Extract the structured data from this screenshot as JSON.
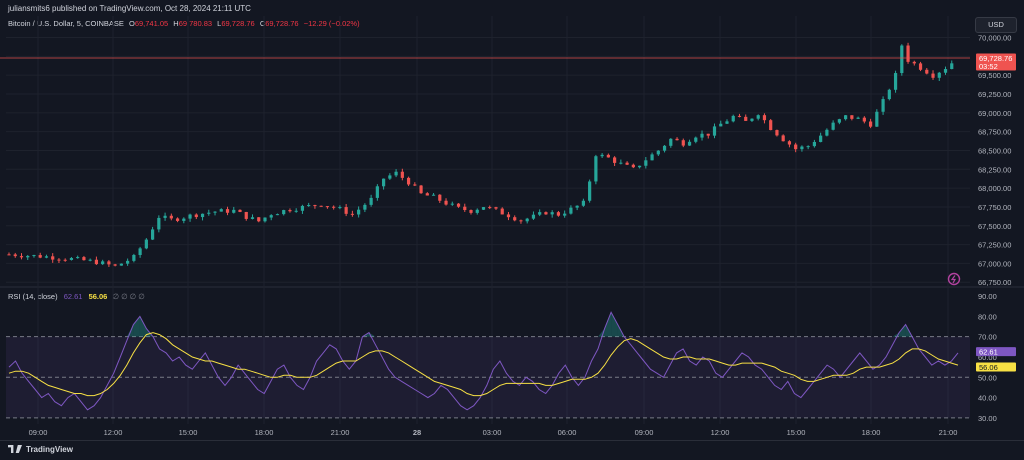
{
  "header": {
    "published": "juliansmits6 published on TradingView.com, Oct 28, 2024 21:11 UTC",
    "symbol": "Bitcoin / U.S. Dollar, 5, COINBASE",
    "o_label": "O",
    "o_value": "69,741.05",
    "h_label": "H",
    "h_value": "69,780.83",
    "l_label": "L",
    "l_value": "69,728.76",
    "c_label": "C",
    "c_value": "69,728.76",
    "change": "−12.29 (−0.02%)",
    "currency": "USD"
  },
  "price_tag": {
    "value": "69,728.76",
    "countdown": "03:52"
  },
  "rsi": {
    "label": "RSI (14, close)",
    "rsi_value": "62.61",
    "ma_value": "56.06",
    "extras": "∅ ∅ ∅ ∅",
    "tag_rsi": "62.61",
    "tag_ma": "56.06"
  },
  "footer": {
    "brand": "TradingView"
  },
  "colors": {
    "up": "#26a69a",
    "down": "#ef5350",
    "rsi": "#7e57c2",
    "rsi_ma": "#f7e044",
    "bg": "#131722"
  },
  "chart_data": [
    {
      "type": "candlestick",
      "title": "Bitcoin / U.S. Dollar, 5, COINBASE",
      "x_ticks": [
        "09:00",
        "12:00",
        "15:00",
        "18:00",
        "21:00",
        "28",
        "03:00",
        "06:00",
        "09:00",
        "12:00",
        "15:00",
        "18:00",
        "21:00"
      ],
      "y_ticks": [
        "70,000.00",
        "69,750.00",
        "69,500.00",
        "69,250.00",
        "69,000.00",
        "68,750.00",
        "68,500.00",
        "68,250.00",
        "68,000.00",
        "67,750.00",
        "67,500.00",
        "67,250.00",
        "67,000.00",
        "66,750.00"
      ],
      "ylim": [
        66700,
        70100
      ],
      "close_path": [
        [
          0,
          67120
        ],
        [
          6,
          67090
        ],
        [
          10,
          67060
        ],
        [
          14,
          67020
        ],
        [
          17,
          66960
        ],
        [
          20,
          67080
        ],
        [
          22,
          67320
        ],
        [
          24,
          67620
        ],
        [
          26,
          67580
        ],
        [
          30,
          67650
        ],
        [
          33,
          67690
        ],
        [
          36,
          67700
        ],
        [
          38,
          67620
        ],
        [
          40,
          67560
        ],
        [
          42,
          67660
        ],
        [
          45,
          67720
        ],
        [
          48,
          67760
        ],
        [
          50,
          67790
        ],
        [
          53,
          67720
        ],
        [
          55,
          67650
        ],
        [
          58,
          67850
        ],
        [
          60,
          68130
        ],
        [
          62,
          68200
        ],
        [
          64,
          68080
        ],
        [
          66,
          67920
        ],
        [
          68,
          67880
        ],
        [
          70,
          67800
        ],
        [
          72,
          67730
        ],
        [
          74,
          67700
        ],
        [
          76,
          67760
        ],
        [
          78,
          67700
        ],
        [
          80,
          67640
        ],
        [
          82,
          67570
        ],
        [
          84,
          67620
        ],
        [
          86,
          67680
        ],
        [
          88,
          67650
        ],
        [
          90,
          67720
        ],
        [
          92,
          67800
        ],
        [
          93,
          68100
        ],
        [
          94,
          68450
        ],
        [
          96,
          68400
        ],
        [
          98,
          68320
        ],
        [
          100,
          68250
        ],
        [
          102,
          68380
        ],
        [
          104,
          68500
        ],
        [
          106,
          68650
        ],
        [
          108,
          68600
        ],
        [
          110,
          68700
        ],
        [
          112,
          68720
        ],
        [
          114,
          68850
        ],
        [
          116,
          68950
        ],
        [
          118,
          68880
        ],
        [
          120,
          69000
        ],
        [
          122,
          68800
        ],
        [
          124,
          68650
        ],
        [
          126,
          68520
        ],
        [
          128,
          68560
        ],
        [
          130,
          68700
        ],
        [
          132,
          68850
        ],
        [
          134,
          68950
        ],
        [
          136,
          68920
        ],
        [
          138,
          68850
        ],
        [
          140,
          69150
        ],
        [
          142,
          69500
        ],
        [
          143,
          69900
        ],
        [
          144,
          69700
        ],
        [
          146,
          69600
        ],
        [
          148,
          69500
        ],
        [
          150,
          69600
        ],
        [
          152,
          69729
        ]
      ],
      "candle_count": 152
    },
    {
      "type": "line",
      "title": "RSI (14, close)",
      "y_ticks": [
        "90.00",
        "80.00",
        "70.00",
        "60.00",
        "50.00",
        "40.00",
        "30.00"
      ],
      "ylim": [
        27,
        92
      ],
      "bands": [
        70,
        50,
        30
      ],
      "series": [
        {
          "name": "RSI",
          "values": [
            55,
            58,
            52,
            48,
            44,
            40,
            42,
            38,
            36,
            40,
            42,
            38,
            34,
            36,
            40,
            46,
            52,
            60,
            68,
            76,
            80,
            74,
            70,
            64,
            62,
            58,
            60,
            56,
            54,
            58,
            62,
            56,
            50,
            46,
            50,
            56,
            52,
            48,
            44,
            42,
            48,
            54,
            56,
            50,
            46,
            44,
            50,
            58,
            62,
            66,
            64,
            58,
            54,
            58,
            70,
            72,
            66,
            60,
            54,
            50,
            48,
            46,
            44,
            42,
            40,
            42,
            46,
            44,
            40,
            36,
            34,
            36,
            40,
            46,
            54,
            58,
            52,
            48,
            46,
            50,
            48,
            44,
            42,
            46,
            52,
            56,
            50,
            46,
            50,
            58,
            64,
            74,
            82,
            76,
            70,
            66,
            62,
            58,
            54,
            52,
            50,
            56,
            62,
            64,
            58,
            56,
            60,
            58,
            52,
            50,
            54,
            58,
            62,
            60,
            56,
            54,
            50,
            46,
            44,
            48,
            42,
            40,
            44,
            48,
            52,
            56,
            54,
            50,
            54,
            58,
            62,
            58,
            54,
            56,
            60,
            66,
            72,
            76,
            70,
            64,
            60,
            56,
            58,
            56,
            58,
            62
          ]
        },
        {
          "name": "RSI-based MA",
          "values": [
            52,
            53,
            53,
            52,
            50,
            48,
            46,
            45,
            44,
            43,
            42,
            42,
            41,
            41,
            42,
            44,
            47,
            51,
            56,
            62,
            67,
            71,
            72,
            71,
            69,
            66,
            64,
            62,
            60,
            59,
            58,
            58,
            57,
            56,
            55,
            54,
            54,
            53,
            52,
            51,
            50,
            50,
            51,
            51,
            50,
            50,
            50,
            51,
            53,
            55,
            57,
            58,
            58,
            58,
            60,
            62,
            63,
            63,
            62,
            60,
            58,
            56,
            54,
            52,
            50,
            48,
            47,
            46,
            45,
            44,
            42,
            41,
            41,
            42,
            44,
            46,
            47,
            47,
            47,
            47,
            47,
            47,
            46,
            46,
            47,
            48,
            49,
            49,
            49,
            50,
            52,
            56,
            61,
            65,
            68,
            69,
            68,
            66,
            64,
            62,
            60,
            59,
            59,
            60,
            60,
            59,
            59,
            59,
            58,
            57,
            56,
            56,
            57,
            57,
            57,
            57,
            56,
            55,
            53,
            52,
            51,
            49,
            48,
            48,
            49,
            50,
            51,
            51,
            51,
            52,
            54,
            55,
            55,
            55,
            56,
            57,
            59,
            62,
            64,
            64,
            63,
            61,
            59,
            58,
            57,
            56
          ]
        }
      ]
    }
  ]
}
